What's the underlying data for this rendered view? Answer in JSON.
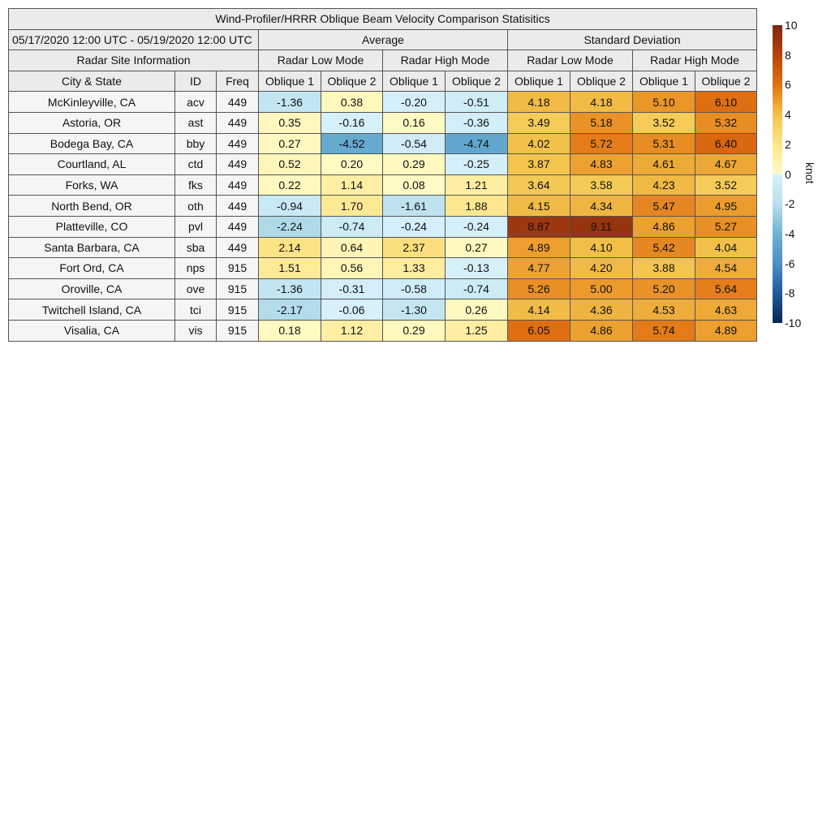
{
  "chart_data": {
    "type": "table",
    "title": "Wind-Profiler/HRRR Oblique Beam Velocity Comparison Statisitics",
    "date_range": "05/17/2020 12:00 UTC - 05/19/2020 12:00 UTC",
    "group_headers": [
      "Average",
      "Standard Deviation"
    ],
    "site_info_header": "Radar Site Information",
    "mode_headers": [
      "Radar Low Mode",
      "Radar High Mode",
      "Radar Low Mode",
      "Radar High Mode"
    ],
    "column_headers": [
      "City & State",
      "ID",
      "Freq",
      "Oblique 1",
      "Oblique 2",
      "Oblique 1",
      "Oblique 2",
      "Oblique 1",
      "Oblique 2",
      "Oblique 1",
      "Oblique 2"
    ],
    "rows": [
      {
        "city": "McKinleyville, CA",
        "id": "acv",
        "freq": "449",
        "values": [
          "-1.36",
          "0.38",
          "-0.20",
          "-0.51",
          "4.18",
          "4.18",
          "5.10",
          "6.10"
        ]
      },
      {
        "city": "Astoria, OR",
        "id": "ast",
        "freq": "449",
        "values": [
          "0.35",
          "-0.16",
          "0.16",
          "-0.36",
          "3.49",
          "5.18",
          "3.52",
          "5.32"
        ]
      },
      {
        "city": "Bodega Bay, CA",
        "id": "bby",
        "freq": "449",
        "values": [
          "0.27",
          "-4.52",
          "-0.54",
          "-4.74",
          "4.02",
          "5.72",
          "5.31",
          "6.40"
        ]
      },
      {
        "city": "Courtland, AL",
        "id": "ctd",
        "freq": "449",
        "values": [
          "0.52",
          "0.20",
          "0.29",
          "-0.25",
          "3.87",
          "4.83",
          "4.61",
          "4.67"
        ]
      },
      {
        "city": "Forks, WA",
        "id": "fks",
        "freq": "449",
        "values": [
          "0.22",
          "1.14",
          "0.08",
          "1.21",
          "3.64",
          "3.58",
          "4.23",
          "3.52"
        ]
      },
      {
        "city": "North Bend, OR",
        "id": "oth",
        "freq": "449",
        "values": [
          "-0.94",
          "1.70",
          "-1.61",
          "1.88",
          "4.15",
          "4.34",
          "5.47",
          "4.95"
        ]
      },
      {
        "city": "Platteville, CO",
        "id": "pvl",
        "freq": "449",
        "values": [
          "-2.24",
          "-0.74",
          "-0.24",
          "-0.24",
          "8.87",
          "9.11",
          "4.86",
          "5.27"
        ]
      },
      {
        "city": "Santa Barbara, CA",
        "id": "sba",
        "freq": "449",
        "values": [
          "2.14",
          "0.64",
          "2.37",
          "0.27",
          "4.89",
          "4.10",
          "5.42",
          "4.04"
        ]
      },
      {
        "city": "Fort Ord, CA",
        "id": "nps",
        "freq": "915",
        "values": [
          "1.51",
          "0.56",
          "1.33",
          "-0.13",
          "4.77",
          "4.20",
          "3.88",
          "4.54"
        ]
      },
      {
        "city": "Oroville, CA",
        "id": "ove",
        "freq": "915",
        "values": [
          "-1.36",
          "-0.31",
          "-0.58",
          "-0.74",
          "5.26",
          "5.00",
          "5.20",
          "5.64"
        ]
      },
      {
        "city": "Twitchell Island, CA",
        "id": "tci",
        "freq": "915",
        "values": [
          "-2.17",
          "-0.06",
          "-1.30",
          "0.26",
          "4.14",
          "4.36",
          "4.53",
          "4.63"
        ]
      },
      {
        "city": "Visalia, CA",
        "id": "vis",
        "freq": "915",
        "values": [
          "0.18",
          "1.12",
          "0.29",
          "1.25",
          "6.05",
          "4.86",
          "5.74",
          "4.89"
        ]
      }
    ],
    "colorbar": {
      "label": "knot",
      "range": [
        -10,
        10
      ],
      "ticks": [
        "10",
        "8",
        "6",
        "4",
        "2",
        "0",
        "-2",
        "-4",
        "-6",
        "-8",
        "-10"
      ],
      "colors": {
        "10": "#7a2812",
        "8": "#b8420a",
        "6": "#e07012",
        "5": "#eb9a2c",
        "4": "#f2c24a",
        "2": "#fde68a",
        "0+": "#fffbc8",
        "0-": "#d8f1fb",
        "-2": "#b8e0ec",
        "-4": "#6fb3d3",
        "-6": "#4a90c4",
        "-8": "#1e5b9e",
        "-10": "#08264f"
      }
    }
  }
}
